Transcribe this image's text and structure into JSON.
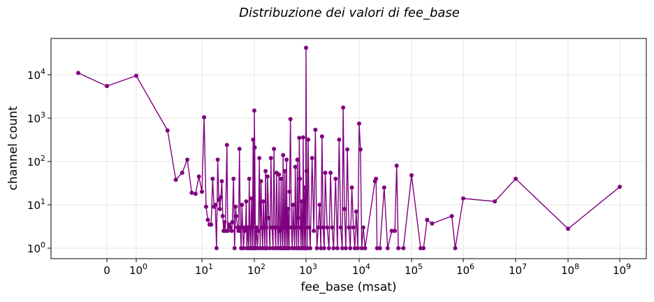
{
  "chart_data": {
    "type": "line",
    "title": "Distribuzione dei valori di fee_base",
    "xlabel": "fee_base (msat)",
    "ylabel": "channel count",
    "x_scale": "symlog",
    "y_scale": "log",
    "grid": true,
    "color": "#800080",
    "x_ticks": [
      {
        "value": 0,
        "base": "0",
        "exp": ""
      },
      {
        "value": 1,
        "base": "10",
        "exp": "0"
      },
      {
        "value": 10,
        "base": "10",
        "exp": "1"
      },
      {
        "value": 100,
        "base": "10",
        "exp": "2"
      },
      {
        "value": 1000,
        "base": "10",
        "exp": "3"
      },
      {
        "value": 10000,
        "base": "10",
        "exp": "4"
      },
      {
        "value": 100000,
        "base": "10",
        "exp": "5"
      },
      {
        "value": 1000000,
        "base": "10",
        "exp": "6"
      },
      {
        "value": 10000000,
        "base": "10",
        "exp": "7"
      },
      {
        "value": 100000000,
        "base": "10",
        "exp": "8"
      },
      {
        "value": 1000000000,
        "base": "10",
        "exp": "9"
      }
    ],
    "y_ticks": [
      {
        "value": 1,
        "base": "10",
        "exp": "0"
      },
      {
        "value": 10,
        "base": "10",
        "exp": "1"
      },
      {
        "value": 100,
        "base": "10",
        "exp": "2"
      },
      {
        "value": 1000,
        "base": "10",
        "exp": "3"
      },
      {
        "value": 10000,
        "base": "10",
        "exp": "4"
      }
    ],
    "xlim": [
      -15,
      3000000000
    ],
    "ylim": [
      0.6,
      70000
    ],
    "series": [
      {
        "points": [
          [
            -1,
            11000
          ],
          [
            0,
            5500
          ],
          [
            1,
            9500
          ],
          [
            3,
            520
          ],
          [
            4,
            38
          ],
          [
            5,
            55
          ],
          [
            6,
            110
          ],
          [
            7,
            19
          ],
          [
            8,
            18
          ],
          [
            9,
            45
          ],
          [
            10,
            20
          ],
          [
            11,
            1050
          ],
          [
            12,
            9
          ],
          [
            13,
            4.5
          ],
          [
            14,
            3.5
          ],
          [
            15,
            3.5
          ],
          [
            16,
            40
          ],
          [
            17,
            9
          ],
          [
            18,
            10
          ],
          [
            19,
            1
          ],
          [
            20,
            110
          ],
          [
            21,
            13
          ],
          [
            22,
            8
          ],
          [
            23,
            15
          ],
          [
            24,
            35
          ],
          [
            25,
            5.5
          ],
          [
            26,
            2.5
          ],
          [
            27,
            4
          ],
          [
            28,
            2.5
          ],
          [
            30,
            240
          ],
          [
            31,
            2.5
          ],
          [
            33,
            3.5
          ],
          [
            35,
            3
          ],
          [
            37,
            2.5
          ],
          [
            38,
            4
          ],
          [
            40,
            40
          ],
          [
            42,
            1
          ],
          [
            44,
            9
          ],
          [
            45,
            5.5
          ],
          [
            48,
            3
          ],
          [
            50,
            2.5
          ],
          [
            52,
            195
          ],
          [
            54,
            3
          ],
          [
            56,
            1
          ],
          [
            58,
            10
          ],
          [
            60,
            3
          ],
          [
            62,
            1
          ],
          [
            65,
            2.5
          ],
          [
            68,
            3
          ],
          [
            70,
            12
          ],
          [
            72,
            1
          ],
          [
            75,
            3
          ],
          [
            78,
            1
          ],
          [
            80,
            40
          ],
          [
            82,
            3
          ],
          [
            85,
            1
          ],
          [
            88,
            14
          ],
          [
            90,
            3
          ],
          [
            92,
            1
          ],
          [
            95,
            320
          ],
          [
            97,
            4
          ],
          [
            99,
            1
          ],
          [
            100,
            1500
          ],
          [
            102,
            210
          ],
          [
            105,
            1
          ],
          [
            110,
            3
          ],
          [
            115,
            1
          ],
          [
            120,
            2.5
          ],
          [
            125,
            120
          ],
          [
            130,
            1
          ],
          [
            135,
            35
          ],
          [
            140,
            3
          ],
          [
            145,
            1
          ],
          [
            150,
            12
          ],
          [
            155,
            3
          ],
          [
            160,
            1
          ],
          [
            165,
            60
          ],
          [
            170,
            3
          ],
          [
            175,
            1
          ],
          [
            180,
            45
          ],
          [
            190,
            5
          ],
          [
            200,
            1
          ],
          [
            210,
            120
          ],
          [
            220,
            3
          ],
          [
            230,
            1
          ],
          [
            240,
            195
          ],
          [
            250,
            3
          ],
          [
            260,
            1
          ],
          [
            270,
            55
          ],
          [
            280,
            3
          ],
          [
            290,
            1
          ],
          [
            300,
            50
          ],
          [
            310,
            2.5
          ],
          [
            320,
            1
          ],
          [
            330,
            40
          ],
          [
            340,
            3
          ],
          [
            350,
            1
          ],
          [
            360,
            140
          ],
          [
            370,
            3
          ],
          [
            380,
            1
          ],
          [
            390,
            60
          ],
          [
            400,
            3
          ],
          [
            410,
            1
          ],
          [
            420,
            110
          ],
          [
            430,
            3
          ],
          [
            440,
            1
          ],
          [
            450,
            8
          ],
          [
            460,
            3
          ],
          [
            470,
            1
          ],
          [
            480,
            20
          ],
          [
            500,
            950
          ],
          [
            520,
            3
          ],
          [
            540,
            1
          ],
          [
            560,
            10
          ],
          [
            580,
            3
          ],
          [
            600,
            1
          ],
          [
            620,
            75
          ],
          [
            640,
            3
          ],
          [
            660,
            1
          ],
          [
            680,
            110
          ],
          [
            700,
            5
          ],
          [
            720,
            1
          ],
          [
            740,
            350
          ],
          [
            760,
            40
          ],
          [
            780,
            3
          ],
          [
            800,
            1
          ],
          [
            820,
            12
          ],
          [
            840,
            3
          ],
          [
            860,
            1
          ],
          [
            880,
            360
          ],
          [
            900,
            6
          ],
          [
            920,
            1
          ],
          [
            940,
            25
          ],
          [
            960,
            3
          ],
          [
            980,
            1
          ],
          [
            1000,
            42000
          ],
          [
            1020,
            60
          ],
          [
            1050,
            1
          ],
          [
            1100,
            320
          ],
          [
            1150,
            3
          ],
          [
            1200,
            1
          ],
          [
            1300,
            120
          ],
          [
            1400,
            2.5
          ],
          [
            1500,
            540
          ],
          [
            1600,
            1
          ],
          [
            1700,
            3
          ],
          [
            1800,
            10
          ],
          [
            1900,
            1
          ],
          [
            2000,
            380
          ],
          [
            2100,
            3
          ],
          [
            2200,
            1
          ],
          [
            2300,
            55
          ],
          [
            2500,
            3
          ],
          [
            2700,
            1
          ],
          [
            2900,
            55
          ],
          [
            3100,
            3
          ],
          [
            3300,
            1
          ],
          [
            3600,
            40
          ],
          [
            3900,
            1
          ],
          [
            4200,
            320
          ],
          [
            4500,
            3
          ],
          [
            4800,
            1
          ],
          [
            5000,
            1750
          ],
          [
            5300,
            8
          ],
          [
            5600,
            1
          ],
          [
            6000,
            190
          ],
          [
            6400,
            3
          ],
          [
            6800,
            1
          ],
          [
            7300,
            25
          ],
          [
            7800,
            3
          ],
          [
            8300,
            1
          ],
          [
            8800,
            7
          ],
          [
            9400,
            1
          ],
          [
            10000,
            750
          ],
          [
            10600,
            190
          ],
          [
            11200,
            1
          ],
          [
            12000,
            3
          ],
          [
            13000,
            1
          ],
          [
            20000,
            35
          ],
          [
            21000,
            40
          ],
          [
            22000,
            1
          ],
          [
            25000,
            1
          ],
          [
            30000,
            25
          ],
          [
            35000,
            1
          ],
          [
            42000,
            2.5
          ],
          [
            48000,
            2.5
          ],
          [
            52000,
            80
          ],
          [
            56000,
            1
          ],
          [
            70000,
            1
          ],
          [
            100000,
            48
          ],
          [
            150000,
            1
          ],
          [
            170000,
            1
          ],
          [
            200000,
            4.5
          ],
          [
            250000,
            3.7
          ],
          [
            600000,
            5.5
          ],
          [
            700000,
            1
          ],
          [
            1000000,
            14
          ],
          [
            4000000,
            12
          ],
          [
            10000000,
            40
          ],
          [
            100000000,
            2.8
          ],
          [
            1000000000,
            26
          ]
        ]
      }
    ]
  }
}
